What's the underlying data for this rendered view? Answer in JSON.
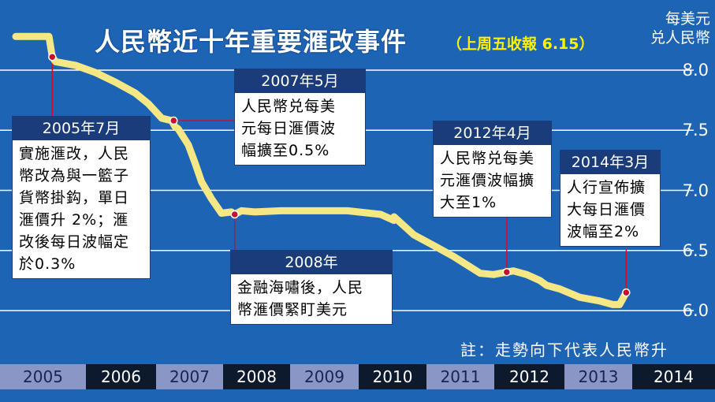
{
  "title": "人民幣近十年重要滙改事件",
  "subtitle": "（上周五收報 6.15）",
  "unit_line1": "每美元",
  "unit_line2": "兑人民幣",
  "note": "註：走勢向下代表人民幣升",
  "colors": {
    "background": "#1e64b4",
    "line": "#f4e784",
    "callout_header": "#1b3c7a",
    "marker_line": "#c8102e"
  },
  "chart_data": {
    "type": "line",
    "title": "人民幣近十年重要滙改事件",
    "subtitle": "（上周五收報 6.15）",
    "ylabel": "每美元兑人民幣",
    "ylim": [
      5.9,
      8.2
    ],
    "yticks": [
      "8.0",
      "7.5",
      "7.0",
      "6.5",
      "6.0"
    ],
    "x_categories": [
      "2005",
      "2006",
      "2007",
      "2008",
      "2009",
      "2010",
      "2011",
      "2012",
      "2013",
      "2014"
    ],
    "xlim": [
      2005.0,
      2014.6
    ],
    "grid": true,
    "series": [
      {
        "x": [
          2005.0,
          2005.25,
          2005.5,
          2005.55,
          2005.6,
          2005.9,
          2006.2,
          2006.5,
          2006.8,
          2007.0,
          2007.2,
          2007.35,
          2007.4,
          2007.45,
          2007.6,
          2007.7,
          2007.8,
          2007.95,
          2008.1,
          2008.25,
          2008.3,
          2008.4,
          2008.6,
          2009.0,
          2009.5,
          2009.95,
          2010.0,
          2010.5,
          2010.7,
          2010.7,
          2011.0,
          2011.3,
          2011.6,
          2011.8,
          2012.0,
          2012.2,
          2012.4,
          2012.5,
          2012.7,
          2012.9,
          2013.0,
          2013.2,
          2013.5,
          2013.8,
          2014.0,
          2014.1,
          2014.2
        ],
        "y": [
          8.28,
          8.28,
          8.28,
          8.11,
          8.07,
          8.04,
          7.98,
          7.9,
          7.81,
          7.72,
          7.6,
          7.58,
          7.53,
          7.51,
          7.38,
          7.23,
          7.07,
          6.93,
          6.81,
          6.82,
          6.8,
          6.83,
          6.82,
          6.83,
          6.83,
          6.83,
          6.83,
          6.8,
          6.75,
          6.78,
          6.63,
          6.54,
          6.45,
          6.38,
          6.31,
          6.3,
          6.32,
          6.33,
          6.3,
          6.25,
          6.21,
          6.18,
          6.11,
          6.08,
          6.05,
          6.05,
          6.15
        ]
      }
    ]
  },
  "callouts": [
    {
      "id": "2005",
      "header": "2005年7月",
      "lines": [
        "實施滙改，人民",
        "幣改為與一籃子",
        "貨幣掛鈎，單日",
        "滙價升 2%；滙",
        "改後每日波幅定",
        "於0.3%"
      ],
      "marker_x": 2005.55,
      "marker_y": 8.11
    },
    {
      "id": "2007",
      "header": "2007年5月",
      "lines": [
        "人民幣兑每美",
        "元每日滙價波",
        "幅擴至0.5%"
      ],
      "marker_x": 2007.38,
      "marker_y": 7.58
    },
    {
      "id": "2008",
      "header": "2008年",
      "lines": [
        "金融海嘯後，人民",
        "幣滙價緊盯美元"
      ],
      "marker_x": 2008.3,
      "marker_y": 6.8
    },
    {
      "id": "2012",
      "header": "2012年4月",
      "lines": [
        "人民幣兑每美",
        "元滙價波幅擴",
        "大至1%"
      ],
      "marker_x": 2012.4,
      "marker_y": 6.32
    },
    {
      "id": "2014",
      "header": "2014年3月",
      "lines": [
        "人行宣佈擴",
        "大每日滙價",
        "波幅至2%"
      ],
      "marker_x": 2014.2,
      "marker_y": 6.15
    }
  ]
}
